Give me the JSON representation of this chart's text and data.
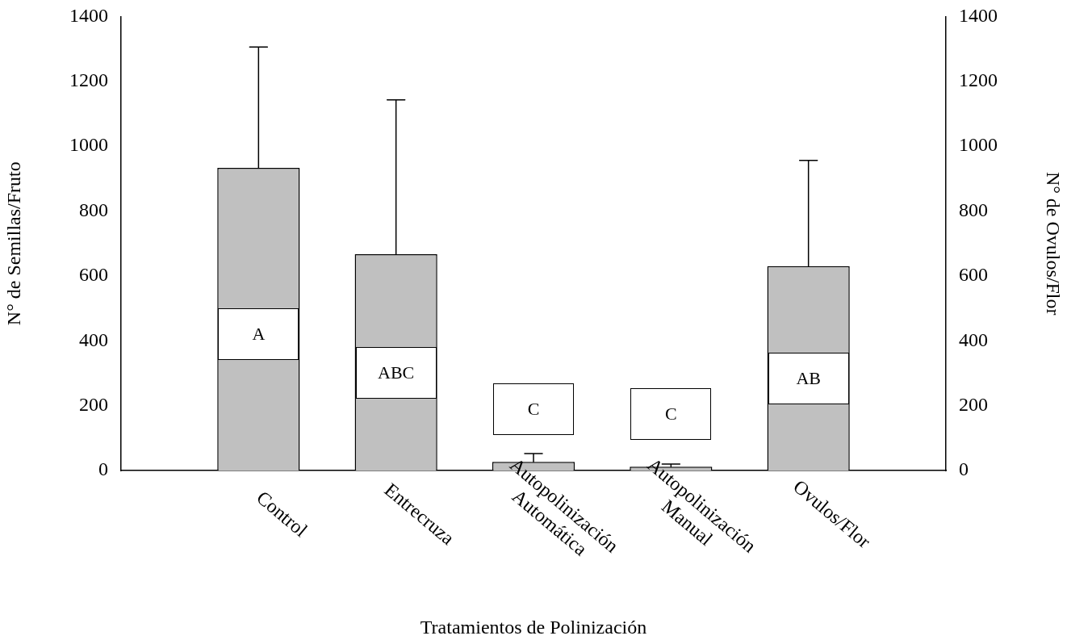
{
  "chart_data": {
    "type": "bar",
    "xlabel": "Tratamientos de Polinización",
    "ylabel": "N° de Semillas/Fruto",
    "y2label": "N° de Ovulos/Flor",
    "categories": [
      null,
      "Control",
      "Entrecruza",
      "Autopolinización\nAutomática",
      "Autopolinización\nManual",
      "Ovulos/Flor",
      null
    ],
    "values": [
      null,
      933,
      667,
      27,
      12,
      630,
      null
    ],
    "errors": [
      null,
      [
        933,
        1306
      ],
      [
        667,
        1143
      ],
      [
        27,
        52
      ],
      [
        12,
        20
      ],
      [
        630,
        956
      ],
      null
    ],
    "color": "#c0c0c0",
    "ylim": [
      0,
      1400
    ],
    "yticks": [
      0,
      200,
      400,
      600,
      800,
      1000,
      1200,
      1400
    ],
    "y2lim": [
      0,
      1400
    ],
    "y2ticks": [
      0,
      200,
      400,
      600,
      800,
      1000,
      1200,
      1400
    ],
    "annotations": [
      "A",
      "ABC",
      "C",
      "C",
      "AB"
    ],
    "grid": false,
    "legend": false
  }
}
